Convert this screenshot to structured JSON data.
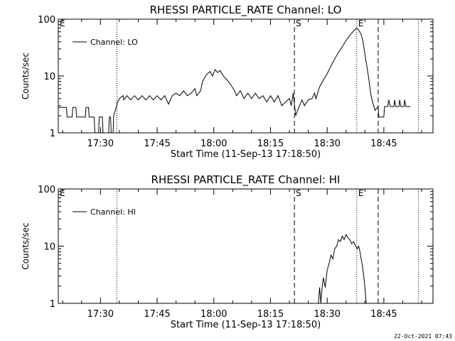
{
  "footer": {
    "timestamp": "22-Oct-2021 07:43"
  },
  "chart_data": [
    {
      "type": "line",
      "title": "RHESSI PARTICLE_RATE Channel: LO",
      "xlabel": "Start Time (11-Sep-13 17:18:50)",
      "ylabel": "Counts/sec",
      "yscale": "log",
      "ylim": [
        1,
        100
      ],
      "yticks": [
        1,
        10,
        100
      ],
      "ytick_labels": [
        "1",
        "10",
        "100"
      ],
      "xlim": [
        "17:18:50",
        "18:58:00"
      ],
      "xticks": [
        "17:30",
        "17:45",
        "18:00",
        "18:15",
        "18:30",
        "18:45"
      ],
      "grid": false,
      "legend": {
        "position": "upper-left",
        "entries": [
          "Channel: LO"
        ]
      },
      "markers": [
        {
          "time": "17:18:50",
          "label": "E",
          "style": "none"
        },
        {
          "time": "17:34:20",
          "label": "",
          "style": "dotted"
        },
        {
          "time": "18:21:20",
          "label": "S",
          "style": "dashed"
        },
        {
          "time": "18:37:50",
          "label": "E",
          "style": "dotted"
        },
        {
          "time": "18:43:30",
          "label": "",
          "style": "dashed"
        },
        {
          "time": "18:54:10",
          "label": "",
          "style": "dotted"
        }
      ],
      "series": [
        {
          "name": "Channel: LO",
          "points": [
            [
              "17:18:50",
              2.8
            ],
            [
              "17:21:00",
              2.8
            ],
            [
              "17:21:10",
              1.9
            ],
            [
              "17:22:30",
              1.9
            ],
            [
              "17:22:40",
              2.8
            ],
            [
              "17:23:30",
              2.8
            ],
            [
              "17:23:40",
              1.9
            ],
            [
              "17:26:00",
              1.9
            ],
            [
              "17:26:10",
              2.8
            ],
            [
              "17:26:50",
              2.8
            ],
            [
              "17:27:00",
              1.9
            ],
            [
              "17:28:20",
              1.9
            ],
            [
              "17:28:30",
              1.0
            ],
            [
              "17:29:30",
              1.0
            ],
            [
              "17:29:40",
              1.9
            ],
            [
              "17:30:30",
              1.9
            ],
            [
              "17:30:40",
              1.0
            ],
            [
              "17:32:10",
              1.0
            ],
            [
              "17:32:20",
              1.9
            ],
            [
              "17:32:40",
              1.9
            ],
            [
              "17:32:50",
              1.0
            ],
            [
              "17:33:20",
              1.0
            ],
            [
              "17:33:30",
              2.0
            ],
            [
              "17:34:10",
              2.8
            ],
            [
              "17:34:30",
              3.5
            ],
            [
              "17:35:10",
              4.1
            ],
            [
              "17:36:00",
              4.5
            ],
            [
              "17:36:10",
              3.8
            ],
            [
              "17:37:00",
              4.5
            ],
            [
              "17:38:00",
              3.8
            ],
            [
              "17:39:00",
              4.5
            ],
            [
              "17:40:00",
              3.8
            ],
            [
              "17:41:00",
              4.5
            ],
            [
              "17:42:00",
              3.8
            ],
            [
              "17:43:00",
              4.5
            ],
            [
              "17:44:00",
              3.8
            ],
            [
              "17:45:00",
              4.5
            ],
            [
              "17:46:00",
              3.8
            ],
            [
              "17:47:00",
              4.5
            ],
            [
              "17:48:00",
              3.2
            ],
            [
              "17:49:00",
              4.5
            ],
            [
              "17:50:00",
              5.0
            ],
            [
              "17:51:00",
              4.5
            ],
            [
              "17:52:00",
              5.5
            ],
            [
              "17:53:00",
              4.5
            ],
            [
              "17:54:00",
              5.0
            ],
            [
              "17:55:00",
              6.0
            ],
            [
              "17:55:30",
              4.5
            ],
            [
              "17:56:30",
              5.5
            ],
            [
              "17:57:00",
              8.0
            ],
            [
              "17:58:00",
              10.5
            ],
            [
              "17:59:00",
              12.0
            ],
            [
              "17:59:40",
              10.0
            ],
            [
              "18:00:20",
              13.0
            ],
            [
              "18:01:00",
              11.5
            ],
            [
              "18:01:40",
              12.5
            ],
            [
              "18:02:30",
              10.0
            ],
            [
              "18:03:30",
              8.5
            ],
            [
              "18:04:30",
              7.0
            ],
            [
              "18:05:30",
              5.5
            ],
            [
              "18:06:00",
              4.5
            ],
            [
              "18:07:00",
              5.5
            ],
            [
              "18:08:00",
              4.0
            ],
            [
              "18:09:00",
              5.0
            ],
            [
              "18:10:00",
              4.0
            ],
            [
              "18:11:00",
              5.0
            ],
            [
              "18:12:00",
              4.0
            ],
            [
              "18:13:00",
              4.5
            ],
            [
              "18:14:00",
              3.5
            ],
            [
              "18:15:00",
              4.5
            ],
            [
              "18:16:00",
              3.5
            ],
            [
              "18:17:00",
              4.5
            ],
            [
              "18:18:00",
              3.0
            ],
            [
              "18:19:00",
              3.5
            ],
            [
              "18:20:00",
              4.0
            ],
            [
              "18:20:30",
              3.0
            ],
            [
              "18:21:00",
              5.0
            ],
            [
              "18:21:40",
              2.0
            ],
            [
              "18:22:30",
              2.8
            ],
            [
              "18:23:20",
              3.8
            ],
            [
              "18:24:00",
              3.0
            ],
            [
              "18:25:00",
              3.8
            ],
            [
              "18:26:00",
              4.0
            ],
            [
              "18:26:40",
              5.0
            ],
            [
              "18:27:00",
              4.0
            ],
            [
              "18:28:00",
              6.5
            ],
            [
              "18:29:00",
              8.5
            ],
            [
              "18:30:00",
              11.0
            ],
            [
              "18:31:00",
              15.0
            ],
            [
              "18:32:00",
              20.0
            ],
            [
              "18:33:00",
              26.0
            ],
            [
              "18:34:00",
              33.0
            ],
            [
              "18:35:00",
              42.0
            ],
            [
              "18:36:00",
              52.0
            ],
            [
              "18:37:00",
              62.0
            ],
            [
              "18:37:50",
              70.0
            ],
            [
              "18:38:30",
              62.0
            ],
            [
              "18:39:00",
              54.0
            ],
            [
              "18:39:30",
              40.0
            ],
            [
              "18:40:00",
              24.0
            ],
            [
              "18:40:30",
              15.0
            ],
            [
              "18:41:00",
              9.0
            ],
            [
              "18:41:30",
              5.0
            ],
            [
              "18:42:00",
              3.5
            ],
            [
              "18:42:40",
              2.5
            ],
            [
              "18:43:30",
              2.9
            ],
            [
              "18:43:40",
              1.9
            ],
            [
              "18:45:00",
              1.9
            ],
            [
              "18:45:10",
              2.9
            ],
            [
              "18:46:00",
              2.9
            ],
            [
              "18:46:20",
              3.8
            ],
            [
              "18:46:40",
              2.9
            ],
            [
              "18:47:40",
              2.9
            ],
            [
              "18:47:50",
              3.8
            ],
            [
              "18:48:10",
              2.9
            ],
            [
              "18:49:00",
              2.9
            ],
            [
              "18:49:10",
              3.8
            ],
            [
              "18:49:30",
              2.9
            ],
            [
              "18:50:20",
              2.9
            ],
            [
              "18:50:30",
              3.8
            ],
            [
              "18:50:50",
              2.9
            ],
            [
              "18:52:00",
              2.9
            ]
          ]
        }
      ]
    },
    {
      "type": "line",
      "title": "RHESSI PARTICLE_RATE Channel: HI",
      "xlabel": "Start Time (11-Sep-13 17:18:50)",
      "ylabel": "Counts/sec",
      "yscale": "log",
      "ylim": [
        1,
        100
      ],
      "yticks": [
        1,
        10,
        100
      ],
      "ytick_labels": [
        "1",
        "10",
        "100"
      ],
      "xlim": [
        "17:18:50",
        "18:58:00"
      ],
      "xticks": [
        "17:30",
        "17:45",
        "18:00",
        "18:15",
        "18:30",
        "18:45"
      ],
      "grid": false,
      "legend": {
        "position": "upper-left",
        "entries": [
          "Channel: HI"
        ]
      },
      "markers": [
        {
          "time": "17:18:50",
          "label": "E",
          "style": "none"
        },
        {
          "time": "17:34:20",
          "label": "",
          "style": "dotted"
        },
        {
          "time": "18:21:20",
          "label": "S",
          "style": "dashed"
        },
        {
          "time": "18:37:50",
          "label": "E",
          "style": "dotted"
        },
        {
          "time": "18:43:30",
          "label": "",
          "style": "dashed"
        },
        {
          "time": "18:54:10",
          "label": "",
          "style": "dotted"
        }
      ],
      "series": [
        {
          "name": "Channel: HI",
          "points": [
            [
              "18:27:40",
              1.0
            ],
            [
              "18:28:00",
              1.9
            ],
            [
              "18:28:20",
              1.0
            ],
            [
              "18:28:40",
              1.9
            ],
            [
              "18:29:00",
              2.8
            ],
            [
              "18:29:30",
              1.9
            ],
            [
              "18:30:00",
              3.8
            ],
            [
              "18:30:30",
              5.0
            ],
            [
              "18:31:00",
              7.0
            ],
            [
              "18:31:30",
              6.0
            ],
            [
              "18:32:00",
              9.0
            ],
            [
              "18:32:30",
              10.0
            ],
            [
              "18:33:00",
              13.0
            ],
            [
              "18:33:30",
              12.0
            ],
            [
              "18:34:00",
              15.0
            ],
            [
              "18:34:30",
              13.0
            ],
            [
              "18:35:00",
              16.0
            ],
            [
              "18:35:30",
              14.0
            ],
            [
              "18:36:00",
              13.0
            ],
            [
              "18:36:30",
              11.0
            ],
            [
              "18:37:00",
              12.0
            ],
            [
              "18:37:30",
              10.0
            ],
            [
              "18:38:00",
              9.0
            ],
            [
              "18:38:20",
              10.0
            ],
            [
              "18:38:40",
              8.0
            ],
            [
              "18:39:00",
              6.0
            ],
            [
              "18:39:20",
              4.5
            ],
            [
              "18:39:40",
              3.0
            ],
            [
              "18:40:00",
              1.9
            ],
            [
              "18:40:20",
              1.0
            ]
          ]
        }
      ]
    }
  ]
}
